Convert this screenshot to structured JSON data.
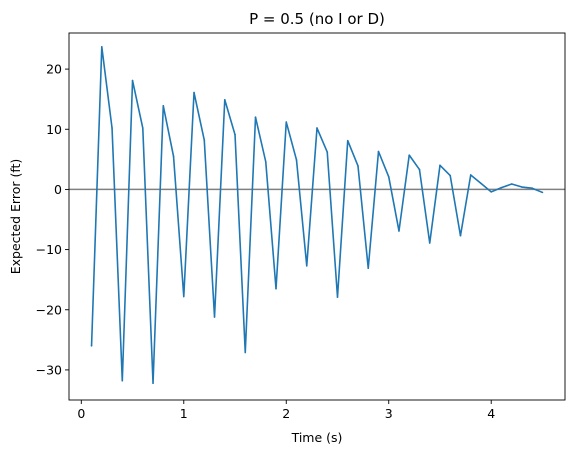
{
  "chart_data": {
    "type": "line",
    "title": "P = 0.5 (no I or D)",
    "xlabel": "Time (s)",
    "ylabel": "Expected Error (ft)",
    "xlim": [
      -0.12,
      4.72
    ],
    "ylim": [
      -35,
      26
    ],
    "xticks": [
      0,
      1,
      2,
      3,
      4
    ],
    "yticks": [
      -30,
      -20,
      -10,
      0,
      10,
      20
    ],
    "xtick_labels": [
      "0",
      "1",
      "2",
      "3",
      "4"
    ],
    "ytick_labels": [
      "−30",
      "−20",
      "−10",
      "0",
      "10",
      "20"
    ],
    "grid": false,
    "reference_line": {
      "y": 0,
      "color": "#808080"
    },
    "series": [
      {
        "color": "#1f77b4",
        "x": [
          0.1,
          0.2,
          0.3,
          0.4,
          0.5,
          0.6,
          0.7,
          0.8,
          0.9,
          1.0,
          1.1,
          1.2,
          1.3,
          1.4,
          1.5,
          1.6,
          1.7,
          1.8,
          1.9,
          2.0,
          2.1,
          2.2,
          2.3,
          2.4,
          2.5,
          2.6,
          2.7,
          2.8,
          2.9,
          3.0,
          3.1,
          3.2,
          3.3,
          3.4,
          3.5,
          3.6,
          3.7,
          3.8,
          3.9,
          4.0,
          4.1,
          4.2,
          4.3,
          4.4,
          4.5
        ],
        "y": [
          -26,
          23.7,
          10.2,
          -31.8,
          18.1,
          10.2,
          -32.2,
          13.9,
          5.5,
          -17.8,
          16.1,
          8.2,
          -21.2,
          14.9,
          9.1,
          -27.1,
          12,
          4.6,
          -16.5,
          11.2,
          4.9,
          -12.7,
          10.2,
          6.2,
          -17.9,
          8.1,
          3.9,
          -13.1,
          6.3,
          2.1,
          -6.9,
          5.7,
          3.3,
          -8.9,
          4,
          2.3,
          -7.7,
          2.4,
          1,
          -0.4,
          0.3,
          0.9,
          0.4,
          0.2,
          -0.5
        ]
      }
    ]
  }
}
